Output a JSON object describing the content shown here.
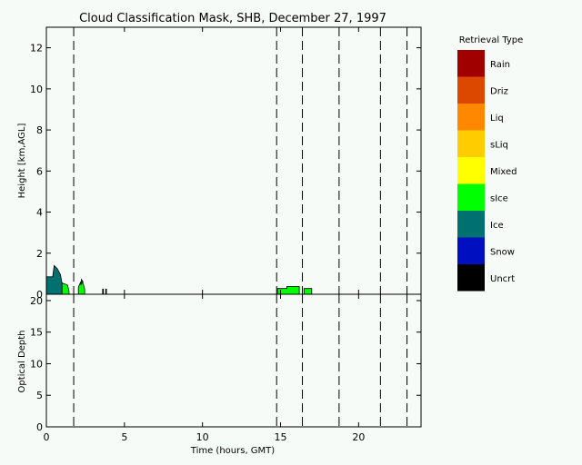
{
  "chart_data": {
    "type": "area",
    "title": "Cloud Classification Mask, SHB, December 27, 1997",
    "xlabel": "Time (hours, GMT)",
    "xlim": [
      0,
      24
    ],
    "x_ticks": [
      "0",
      "5",
      "10",
      "15",
      "20"
    ],
    "x_tick_values": [
      0,
      5,
      10,
      15,
      20
    ],
    "panels": [
      {
        "ylabel": "Height [km,AGL]",
        "ylim": [
          0,
          13
        ],
        "y_ticks": [
          "0",
          "2",
          "4",
          "6",
          "8",
          "10",
          "12"
        ],
        "y_tick_values": [
          0,
          2,
          4,
          6,
          8,
          10,
          12
        ]
      },
      {
        "ylabel": "Optical Depth",
        "ylim": [
          0,
          21
        ],
        "y_ticks": [
          "0",
          "5",
          "10",
          "15",
          "20"
        ],
        "y_tick_values": [
          0,
          5,
          10,
          15,
          20
        ]
      }
    ],
    "vertical_dashed_lines": [
      1.75,
      14.75,
      16.4,
      18.75,
      21.4,
      23.1
    ],
    "cloud_regions": [
      {
        "type": "Ice",
        "color": "#007070",
        "points": [
          [
            0,
            0
          ],
          [
            0,
            0.85
          ],
          [
            0.4,
            0.85
          ],
          [
            0.5,
            1.4
          ],
          [
            0.7,
            1.25
          ],
          [
            0.9,
            0.95
          ],
          [
            1.0,
            0.55
          ],
          [
            1.0,
            0
          ]
        ]
      },
      {
        "type": "sIce",
        "color": "#00ff00",
        "points": [
          [
            1.0,
            0
          ],
          [
            1.0,
            0.55
          ],
          [
            1.35,
            0.45
          ],
          [
            1.45,
            0.15
          ],
          [
            1.45,
            0
          ]
        ]
      },
      {
        "type": "sIce",
        "color": "#00ff00",
        "points": [
          [
            2.05,
            0
          ],
          [
            2.05,
            0.35
          ],
          [
            2.2,
            0.6
          ],
          [
            2.35,
            0.55
          ],
          [
            2.45,
            0.25
          ],
          [
            2.45,
            0
          ]
        ]
      },
      {
        "type": "Ice",
        "color": "#007070",
        "points": [
          [
            2.2,
            0.45
          ],
          [
            2.25,
            0.72
          ],
          [
            2.35,
            0.6
          ]
        ]
      },
      {
        "type": "sIce",
        "color": "#00ff00",
        "points": [
          [
            14.8,
            0
          ],
          [
            14.8,
            0.28
          ],
          [
            15.4,
            0.28
          ],
          [
            15.4,
            0.38
          ],
          [
            16.2,
            0.38
          ],
          [
            16.2,
            0
          ]
        ]
      },
      {
        "type": "sIce",
        "color": "#00ff00",
        "points": [
          [
            16.5,
            0
          ],
          [
            16.5,
            0.28
          ],
          [
            17.0,
            0.28
          ],
          [
            17.0,
            0
          ]
        ]
      },
      {
        "type": "Uncrt",
        "color": "#000000",
        "points": [
          [
            3.6,
            0
          ],
          [
            3.6,
            0.25
          ],
          [
            3.65,
            0.25
          ],
          [
            3.65,
            0
          ]
        ]
      },
      {
        "type": "Uncrt",
        "color": "#000000",
        "points": [
          [
            3.8,
            0
          ],
          [
            3.8,
            0.25
          ],
          [
            3.85,
            0.25
          ],
          [
            3.85,
            0
          ]
        ]
      }
    ],
    "legend": {
      "title": "Retrieval Type",
      "position": "right",
      "entries": [
        {
          "label": "Rain",
          "color": "#a00000"
        },
        {
          "label": "Driz",
          "color": "#dc4800"
        },
        {
          "label": "Liq",
          "color": "#ff8800"
        },
        {
          "label": "sLiq",
          "color": "#ffcc00"
        },
        {
          "label": "Mixed",
          "color": "#ffff00"
        },
        {
          "label": "sIce",
          "color": "#00ff00"
        },
        {
          "label": "Ice",
          "color": "#007070"
        },
        {
          "label": "Snow",
          "color": "#0010c0"
        },
        {
          "label": "Uncrt",
          "color": "#000000"
        }
      ]
    }
  }
}
